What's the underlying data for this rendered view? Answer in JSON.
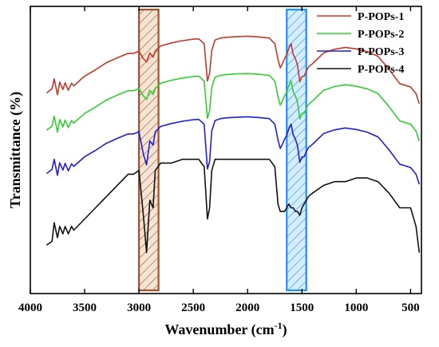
{
  "chart_data": {
    "type": "line",
    "xlabel": "Wavenumber (cm",
    "xlabel_sup": "-1",
    "xlabel_end": ")",
    "ylabel": "Transmittance (%)",
    "xlim": [
      4000,
      400
    ],
    "x_reversed": true,
    "y_ticks_shown": false,
    "grid": false,
    "legend_position": "top-right",
    "x_ticks": [
      {
        "v": 4000,
        "label": "4000"
      },
      {
        "v": 3500,
        "label": "3500"
      },
      {
        "v": 3000,
        "label": "3000"
      },
      {
        "v": 2500,
        "label": "2500"
      },
      {
        "v": 2000,
        "label": "2000"
      },
      {
        "v": 1500,
        "label": "1500"
      },
      {
        "v": 1000,
        "label": "1000"
      },
      {
        "v": 500,
        "label": "500"
      }
    ],
    "highlight_bands": [
      {
        "x_from": 3000,
        "x_to": 2820,
        "color": "#a0522d"
      },
      {
        "x_from": 1640,
        "x_to": 1460,
        "color": "#1e90ff"
      }
    ],
    "series": [
      {
        "name": "P-POPs-1",
        "color": "#c0392b",
        "x": [
          3850,
          3800,
          3780,
          3750,
          3730,
          3700,
          3680,
          3650,
          3620,
          3600,
          3500,
          3400,
          3300,
          3200,
          3100,
          3050,
          3000,
          2960,
          2930,
          2900,
          2870,
          2850,
          2800,
          2700,
          2600,
          2500,
          2450,
          2400,
          2370,
          2350,
          2330,
          2300,
          2250,
          2200,
          2100,
          2000,
          1900,
          1800,
          1750,
          1720,
          1700,
          1680,
          1660,
          1640,
          1620,
          1600,
          1580,
          1560,
          1540,
          1520,
          1500,
          1480,
          1460,
          1440,
          1400,
          1300,
          1200,
          1100,
          1000,
          900,
          800,
          700,
          600,
          500,
          450,
          420
        ],
        "values": [
          68.8,
          69.9,
          72.6,
          68.3,
          71.7,
          69.7,
          71.5,
          69.5,
          71.4,
          70.7,
          73.3,
          75.0,
          76.9,
          78.2,
          79.4,
          79.4,
          80.0,
          78.0,
          77.1,
          79.5,
          78.4,
          80.0,
          81.4,
          82.2,
          82.8,
          83.2,
          83.3,
          82.0,
          72.0,
          74.0,
          80.2,
          83.0,
          83.5,
          83.7,
          83.9,
          84.0,
          83.8,
          83.5,
          82.0,
          77.8,
          75.5,
          76.6,
          78.0,
          79.0,
          80.8,
          82.0,
          79.1,
          78.0,
          76.2,
          71.8,
          73.2,
          73.3,
          74.6,
          75.7,
          76.7,
          79.5,
          80.5,
          81.0,
          80.6,
          79.9,
          78.6,
          75.2,
          71.3,
          70.4,
          68.6,
          65.9
        ]
      },
      {
        "name": "P-POPs-2",
        "color": "#33cc33",
        "x": [
          3850,
          3800,
          3780,
          3750,
          3730,
          3700,
          3680,
          3650,
          3620,
          3600,
          3500,
          3400,
          3300,
          3200,
          3100,
          3050,
          3000,
          2960,
          2930,
          2900,
          2870,
          2850,
          2800,
          2700,
          2600,
          2500,
          2450,
          2400,
          2370,
          2350,
          2330,
          2300,
          2250,
          2200,
          2100,
          2000,
          1900,
          1800,
          1750,
          1720,
          1700,
          1680,
          1660,
          1640,
          1620,
          1600,
          1580,
          1560,
          1540,
          1520,
          1500,
          1480,
          1460,
          1440,
          1400,
          1300,
          1200,
          1100,
          1000,
          900,
          800,
          700,
          600,
          500,
          450,
          420
        ],
        "values": [
          58.8,
          59.9,
          62.6,
          58.3,
          61.7,
          59.7,
          61.5,
          59.5,
          61.4,
          60.7,
          63.3,
          65.0,
          66.9,
          68.2,
          69.4,
          69.4,
          70.0,
          68.0,
          67.1,
          69.5,
          68.4,
          70.0,
          71.4,
          72.2,
          72.8,
          73.2,
          73.3,
          72.0,
          62.0,
          64.0,
          70.2,
          73.0,
          73.5,
          73.7,
          73.9,
          74.0,
          73.8,
          73.5,
          72.0,
          67.8,
          65.5,
          66.6,
          68.0,
          69.0,
          70.8,
          72.0,
          69.1,
          68.0,
          66.2,
          61.8,
          63.2,
          63.3,
          64.6,
          65.7,
          66.7,
          69.5,
          70.5,
          71.0,
          70.6,
          69.9,
          68.6,
          65.2,
          61.3,
          60.4,
          58.6,
          55.9
        ]
      },
      {
        "name": "P-POPs-3",
        "color": "#1f1fd6",
        "x": [
          3850,
          3800,
          3780,
          3750,
          3730,
          3700,
          3680,
          3650,
          3620,
          3600,
          3500,
          3400,
          3300,
          3200,
          3100,
          3050,
          3000,
          2960,
          2930,
          2900,
          2870,
          2850,
          2800,
          2700,
          2600,
          2500,
          2450,
          2400,
          2370,
          2350,
          2330,
          2300,
          2250,
          2200,
          2100,
          2000,
          1900,
          1800,
          1750,
          1720,
          1700,
          1680,
          1660,
          1640,
          1620,
          1600,
          1580,
          1560,
          1540,
          1520,
          1500,
          1480,
          1460,
          1440,
          1400,
          1300,
          1200,
          1100,
          1000,
          900,
          800,
          700,
          600,
          500,
          450,
          420
        ],
        "values": [
          47.2,
          48.3,
          51.0,
          46.7,
          50.1,
          48.1,
          49.9,
          47.9,
          49.8,
          49.1,
          51.7,
          53.4,
          55.3,
          56.6,
          57.8,
          57.8,
          58.4,
          52.4,
          49.5,
          55.9,
          54.8,
          58.4,
          59.8,
          60.6,
          61.2,
          61.6,
          61.7,
          60.4,
          48.4,
          50.4,
          58.6,
          61.4,
          61.9,
          62.1,
          62.3,
          62.4,
          62.2,
          61.9,
          60.4,
          56.2,
          53.9,
          55.0,
          56.4,
          57.4,
          59.2,
          60.4,
          57.5,
          56.4,
          54.6,
          50.2,
          51.6,
          51.7,
          53.0,
          54.1,
          55.1,
          57.9,
          58.9,
          59.4,
          59.0,
          58.3,
          57.0,
          53.6,
          49.7,
          48.8,
          47.0,
          44.3
        ]
      },
      {
        "name": "P-POPs-4",
        "color": "#111111",
        "x": [
          3850,
          3800,
          3780,
          3750,
          3730,
          3700,
          3680,
          3650,
          3620,
          3600,
          3500,
          3400,
          3300,
          3200,
          3100,
          3050,
          3000,
          2960,
          2930,
          2900,
          2870,
          2850,
          2800,
          2700,
          2600,
          2500,
          2450,
          2400,
          2370,
          2350,
          2330,
          2300,
          2250,
          2200,
          2100,
          2000,
          1900,
          1800,
          1750,
          1720,
          1700,
          1680,
          1660,
          1640,
          1620,
          1600,
          1580,
          1560,
          1540,
          1520,
          1500,
          1480,
          1460,
          1440,
          1400,
          1300,
          1200,
          1100,
          1000,
          900,
          800,
          700,
          600,
          500,
          450,
          420
        ],
        "values": [
          28.0,
          29.0,
          34.0,
          30.0,
          33.0,
          31.0,
          33.0,
          31.0,
          33.0,
          32.0,
          35.0,
          38.0,
          41.0,
          44.0,
          47.0,
          47.0,
          48.0,
          36.0,
          26.0,
          40.0,
          38.0,
          48.0,
          50.0,
          50.0,
          51.0,
          51.0,
          51.0,
          49.0,
          35.0,
          38.0,
          48.0,
          51.0,
          51.0,
          51.0,
          51.0,
          51.0,
          51.0,
          51.0,
          49.0,
          39.0,
          37.0,
          37.0,
          37.0,
          38.0,
          39.0,
          38.0,
          38.0,
          37.0,
          37.0,
          36.0,
          38.0,
          39.0,
          40.0,
          41.0,
          42.0,
          44.0,
          45.0,
          45.0,
          46.0,
          46.0,
          45.0,
          42.0,
          38.0,
          38.0,
          33.0,
          26.0
        ]
      }
    ]
  }
}
